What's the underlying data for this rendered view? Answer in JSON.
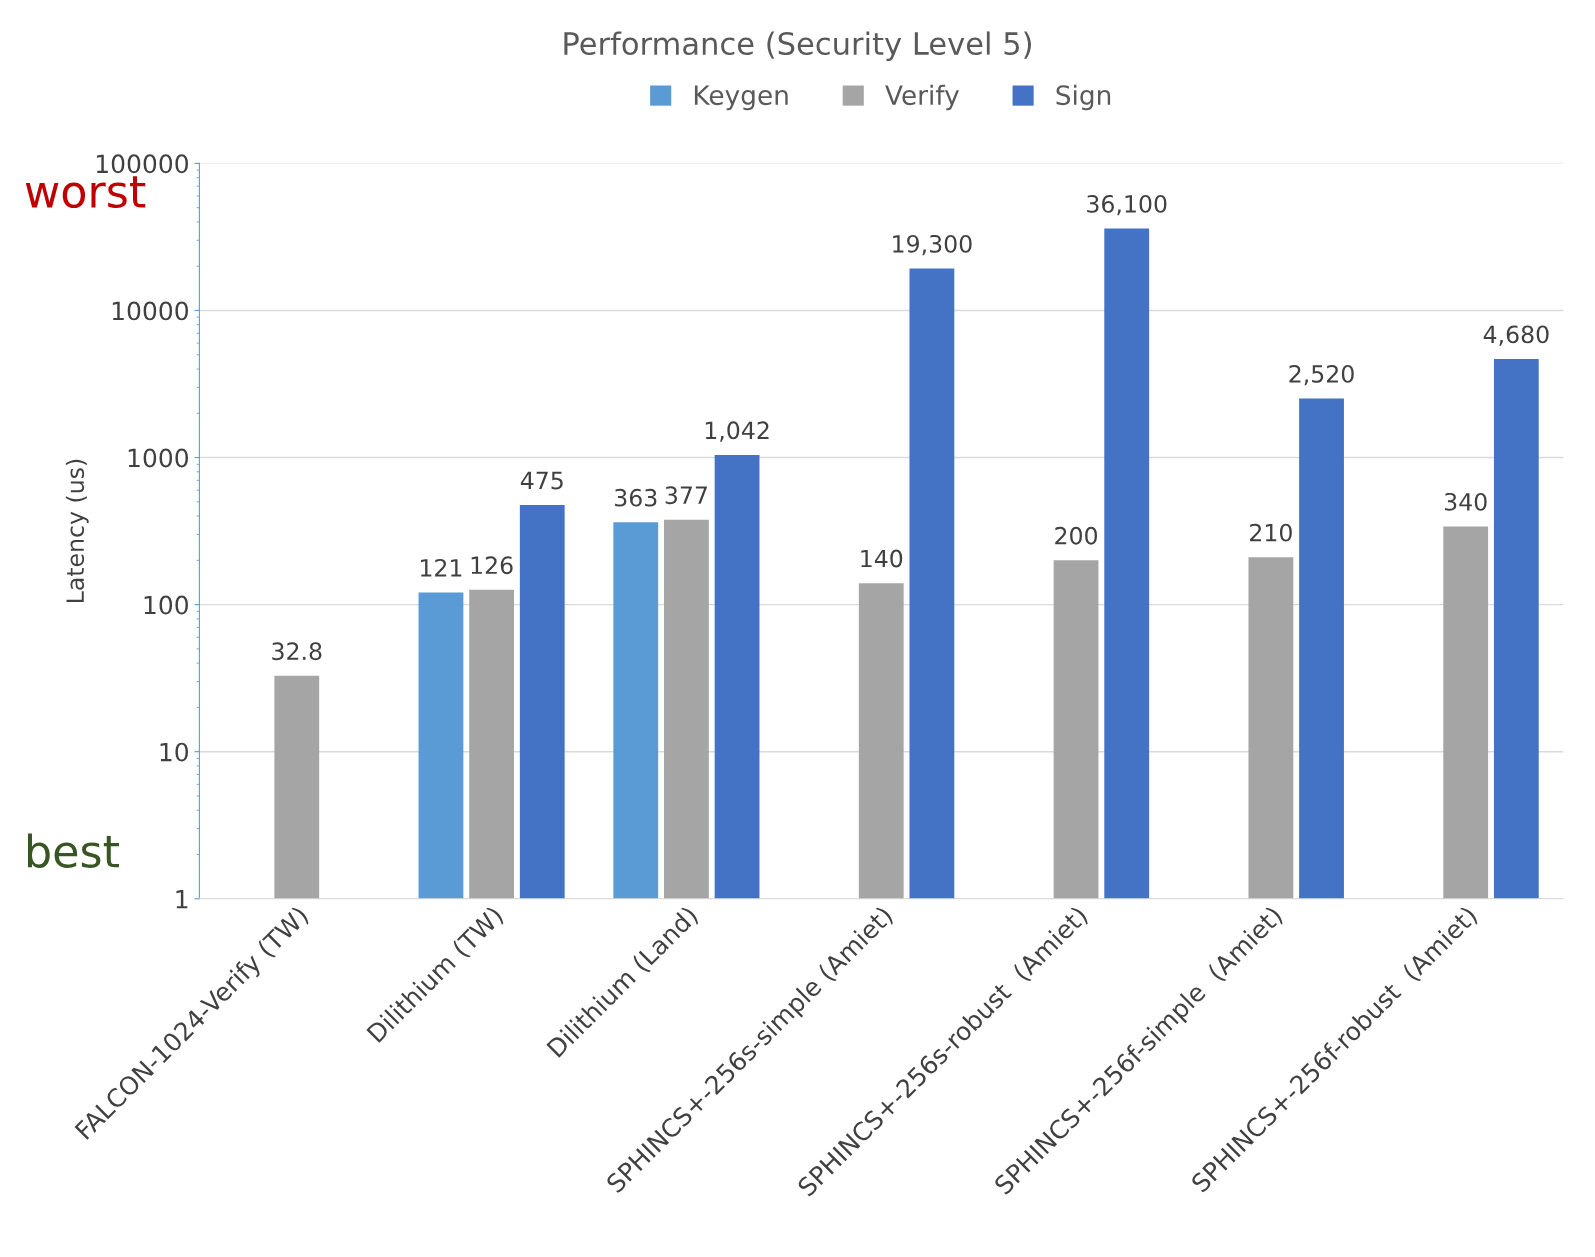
{
  "chart_data": {
    "type": "bar",
    "title": "Performance (Security Level 5)",
    "ylabel": "Latency (us)",
    "categories": [
      "FALCON-1024-Verify (TW)",
      "Dilithium (TW)",
      "Dilithium (Land)",
      "SPHINCS+-256s-simple (Amiet)",
      "SPHINCS+-256s-robust  (Amiet)",
      "SPHINCS+-256f-simple  (Amiet)",
      "SPHINCS+-256f-robust  (Amiet)"
    ],
    "series": [
      {
        "name": "Keygen",
        "color": "#5b9bd5",
        "values": [
          null,
          121,
          363,
          null,
          null,
          null,
          null
        ],
        "value_labels": [
          null,
          "121",
          "363",
          null,
          null,
          null,
          null
        ]
      },
      {
        "name": "Verify",
        "color": "#a5a5a5",
        "values": [
          32.8,
          126,
          377,
          140,
          200,
          210,
          340
        ],
        "value_labels": [
          "32.8",
          "126",
          "377",
          "140",
          "200",
          "210",
          "340"
        ]
      },
      {
        "name": "Sign",
        "color": "#4472c4",
        "values": [
          null,
          475,
          1042,
          19300,
          36100,
          2520,
          4680
        ],
        "value_labels": [
          null,
          "475",
          "1,042",
          "19,300",
          "36,100",
          "2,520",
          "4,680"
        ]
      }
    ],
    "log": "y",
    "ylim": [
      1,
      100000
    ],
    "yticks": [
      1,
      10,
      100,
      1000,
      10000,
      100000
    ],
    "grid": "y",
    "legend": "top",
    "annotations": [
      "worst",
      "best"
    ]
  }
}
